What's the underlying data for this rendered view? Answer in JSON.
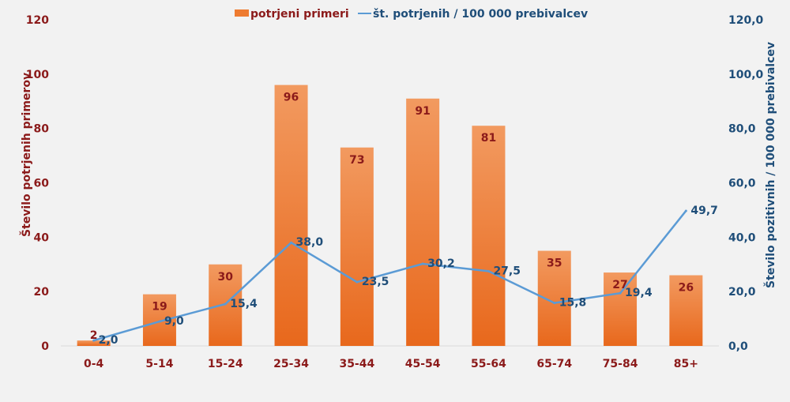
{
  "chart_data": {
    "type": "bar+line",
    "categories": [
      "0-4",
      "5-14",
      "15-24",
      "25-34",
      "35-44",
      "45-54",
      "55-64",
      "65-74",
      "75-84",
      "85+"
    ],
    "series": [
      {
        "name": "potrjeni primeri",
        "type": "bar",
        "axis": "left",
        "values": [
          2,
          19,
          30,
          96,
          73,
          91,
          81,
          35,
          27,
          26
        ],
        "color": "#ee7b30"
      },
      {
        "name": "št. potrjenih / 100 000 prebivalcev",
        "type": "line",
        "axis": "right",
        "values": [
          2.0,
          9.0,
          15.4,
          38.0,
          23.5,
          30.2,
          27.5,
          15.8,
          19.4,
          49.7
        ],
        "color": "#5b9bd5"
      }
    ],
    "ylabel": "Število potrjenih primerov",
    "ylabel_right": "Število pozitivnih / 100 000 prebivalcev",
    "ylim": [
      0,
      120
    ],
    "ylim_right": [
      0,
      120
    ],
    "yticks": [
      "0",
      "20",
      "40",
      "60",
      "80",
      "100",
      "120"
    ],
    "yticks_right": [
      "0,0",
      "20,0",
      "40,0",
      "60,0",
      "80,0",
      "100,0",
      "120,0"
    ],
    "legend_position": "top-center",
    "grid": false
  }
}
